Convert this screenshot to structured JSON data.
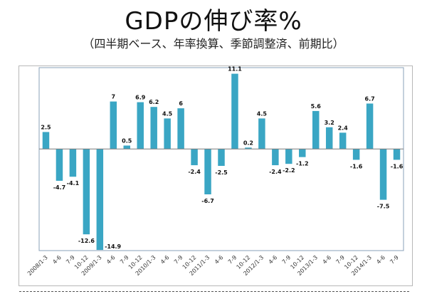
{
  "chart_data": {
    "type": "bar",
    "title": "GDPの伸び率%",
    "subtitle": "（四半期ベース、年率換算、季節調整済、前期比）",
    "xlabel": "",
    "ylabel": "",
    "ylim": [
      -15,
      12
    ],
    "grid": false,
    "legend": "none",
    "bar_color": "#3aa6c4",
    "categories": [
      "2008/1-3",
      "4-6",
      "7-9",
      "10-12",
      "2009/1-3",
      "4-6",
      "7-9",
      "10-12",
      "2010/1-3",
      "4-6",
      "7-9",
      "10-12",
      "2011/1-3",
      "4-6",
      "7-9",
      "10-12",
      "2012/1-3",
      "4-6",
      "7-9",
      "10-12",
      "2013/1-3",
      "4-6",
      "7-9",
      "10-12",
      "2014/1-3",
      "4-6",
      "7-9"
    ],
    "values": [
      2.5,
      -4.7,
      -4.1,
      -12.6,
      -14.9,
      7,
      0.5,
      6.9,
      6.2,
      4.5,
      6,
      -2.4,
      -6.7,
      -2.5,
      11.1,
      0.2,
      4.5,
      -2.4,
      -2.2,
      -1.2,
      5.6,
      3.2,
      2.4,
      -1.6,
      6.7,
      -7.5,
      -1.6
    ],
    "data_labels": [
      "2.5",
      "-4.7",
      "-4.1",
      "-12.6",
      "-14.9",
      "7",
      "0.5",
      "6.9",
      "6.2",
      "4.5",
      "6",
      "-2.4",
      "-6.7",
      "-2.5",
      "11.1",
      "0.2",
      "4.5",
      "-2.4",
      "-2.2",
      "-1.2",
      "5.6",
      "3.2",
      "2.4",
      "-1.6",
      "6.7",
      "-7.5",
      "-1.6"
    ]
  }
}
